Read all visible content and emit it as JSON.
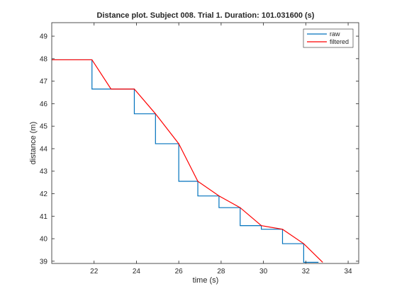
{
  "chart_data": {
    "type": "line",
    "title": "Distance plot. Subject 008. Trial 1. Duration: 101.031600 (s)",
    "xlabel": "time (s)",
    "ylabel": "distance (m)",
    "xlim": [
      20,
      34.5
    ],
    "ylim": [
      38.9,
      49.6
    ],
    "xticks": [
      22,
      24,
      26,
      28,
      30,
      32,
      34
    ],
    "yticks": [
      39,
      40,
      41,
      42,
      43,
      44,
      45,
      46,
      47,
      48,
      49
    ],
    "grid": false,
    "legend_position": "top-right",
    "series": [
      {
        "name": "raw",
        "color": "#0072bd",
        "x": [
          20.0,
          21.9,
          21.9,
          23.9,
          23.9,
          24.9,
          24.9,
          26.0,
          26.0,
          26.9,
          26.9,
          27.9,
          27.9,
          28.9,
          28.9,
          29.9,
          29.9,
          30.9,
          30.9,
          31.9,
          31.9,
          32.6
        ],
        "y": [
          47.95,
          47.95,
          46.65,
          46.65,
          45.55,
          45.55,
          44.22,
          44.22,
          42.55,
          42.55,
          41.9,
          41.9,
          41.38,
          41.38,
          40.58,
          40.58,
          40.42,
          40.42,
          39.78,
          39.78,
          38.95,
          38.95
        ]
      },
      {
        "name": "filtered",
        "color": "#ff0000",
        "x": [
          20.0,
          21.9,
          22.8,
          23.9,
          24.9,
          26.0,
          26.9,
          27.9,
          28.9,
          29.9,
          30.9,
          31.9,
          32.8
        ],
        "y": [
          47.95,
          47.95,
          46.65,
          46.65,
          45.55,
          44.22,
          42.55,
          41.9,
          41.38,
          40.58,
          40.42,
          39.78,
          38.95
        ]
      }
    ]
  }
}
